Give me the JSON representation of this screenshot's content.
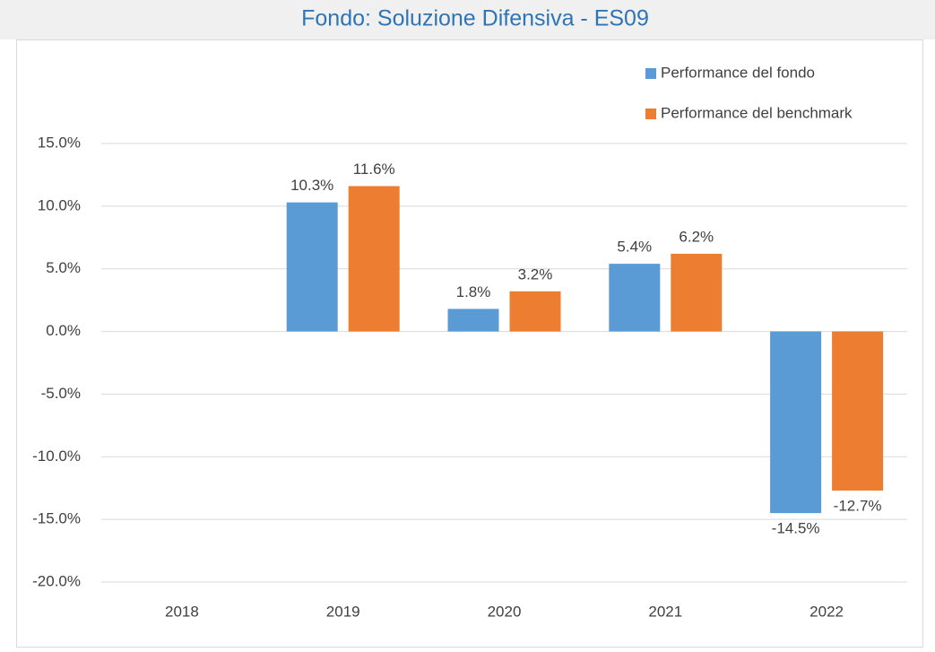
{
  "chart_data": {
    "type": "bar",
    "title": "Fondo: Soluzione Difensiva - ES09",
    "categories": [
      "2018",
      "2019",
      "2020",
      "2021",
      "2022"
    ],
    "series": [
      {
        "name": "Performance del fondo",
        "color": "#5b9bd5",
        "values": [
          null,
          10.3,
          1.8,
          5.4,
          -14.5
        ],
        "value_labels": [
          null,
          "10.3%",
          "1.8%",
          "5.4%",
          "-14.5%"
        ]
      },
      {
        "name": "Performance del benchmark",
        "color": "#ed7d31",
        "values": [
          null,
          11.6,
          3.2,
          6.2,
          -12.7
        ],
        "value_labels": [
          null,
          "11.6%",
          "3.2%",
          "6.2%",
          "-12.7%"
        ]
      }
    ],
    "ylim": [
      -20,
      15
    ],
    "yticks": [
      {
        "value": -20,
        "label": "-20.0%"
      },
      {
        "value": -15,
        "label": "-15.0%"
      },
      {
        "value": -10,
        "label": "-10.0%"
      },
      {
        "value": -5,
        "label": "-5.0%"
      },
      {
        "value": 0,
        "label": "0.0%"
      },
      {
        "value": 5,
        "label": "5.0%"
      },
      {
        "value": 10,
        "label": "10.0%"
      },
      {
        "value": 15,
        "label": "15.0%"
      }
    ],
    "grid": true,
    "legend": "upper right"
  }
}
